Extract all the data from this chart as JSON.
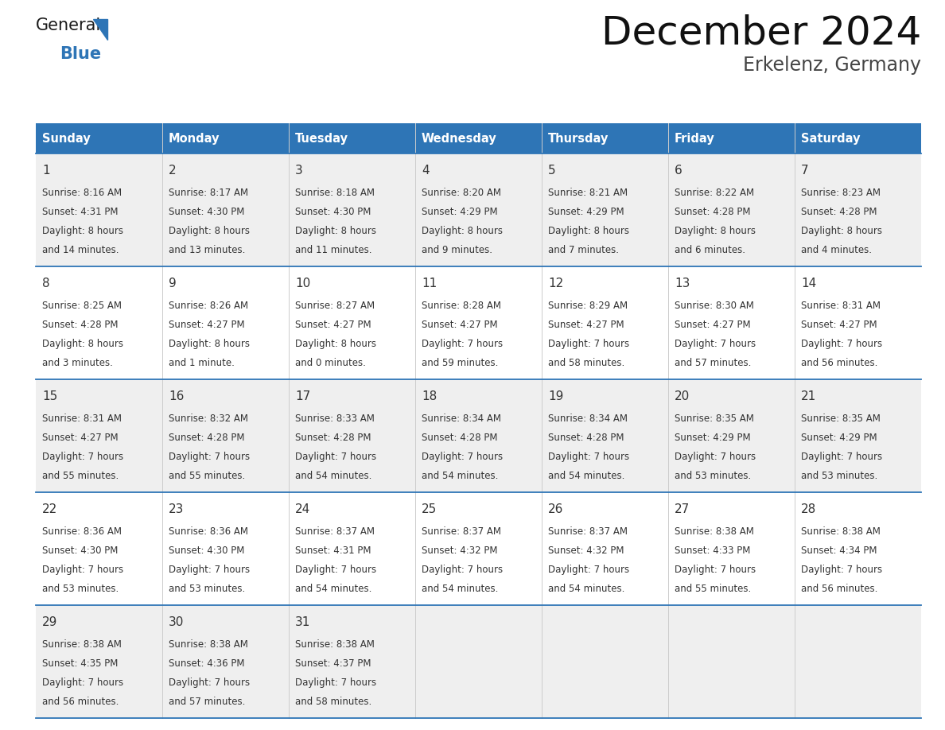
{
  "title": "December 2024",
  "subtitle": "Erkelenz, Germany",
  "header_bg": "#2E75B6",
  "header_text_color": "#FFFFFF",
  "day_headers": [
    "Sunday",
    "Monday",
    "Tuesday",
    "Wednesday",
    "Thursday",
    "Friday",
    "Saturday"
  ],
  "row_bg_even": "#EFEFEF",
  "row_bg_odd": "#FFFFFF",
  "border_color": "#2E75B6",
  "text_color": "#333333",
  "date_color": "#333333",
  "logo_general_color": "#1a1a1a",
  "logo_blue_color": "#2E75B6",
  "calendar_data": [
    [
      {
        "day": 1,
        "sunrise": "8:16 AM",
        "sunset": "4:31 PM",
        "daylight_line1": "Daylight: 8 hours",
        "daylight_line2": "and 14 minutes."
      },
      {
        "day": 2,
        "sunrise": "8:17 AM",
        "sunset": "4:30 PM",
        "daylight_line1": "Daylight: 8 hours",
        "daylight_line2": "and 13 minutes."
      },
      {
        "day": 3,
        "sunrise": "8:18 AM",
        "sunset": "4:30 PM",
        "daylight_line1": "Daylight: 8 hours",
        "daylight_line2": "and 11 minutes."
      },
      {
        "day": 4,
        "sunrise": "8:20 AM",
        "sunset": "4:29 PM",
        "daylight_line1": "Daylight: 8 hours",
        "daylight_line2": "and 9 minutes."
      },
      {
        "day": 5,
        "sunrise": "8:21 AM",
        "sunset": "4:29 PM",
        "daylight_line1": "Daylight: 8 hours",
        "daylight_line2": "and 7 minutes."
      },
      {
        "day": 6,
        "sunrise": "8:22 AM",
        "sunset": "4:28 PM",
        "daylight_line1": "Daylight: 8 hours",
        "daylight_line2": "and 6 minutes."
      },
      {
        "day": 7,
        "sunrise": "8:23 AM",
        "sunset": "4:28 PM",
        "daylight_line1": "Daylight: 8 hours",
        "daylight_line2": "and 4 minutes."
      }
    ],
    [
      {
        "day": 8,
        "sunrise": "8:25 AM",
        "sunset": "4:28 PM",
        "daylight_line1": "Daylight: 8 hours",
        "daylight_line2": "and 3 minutes."
      },
      {
        "day": 9,
        "sunrise": "8:26 AM",
        "sunset": "4:27 PM",
        "daylight_line1": "Daylight: 8 hours",
        "daylight_line2": "and 1 minute."
      },
      {
        "day": 10,
        "sunrise": "8:27 AM",
        "sunset": "4:27 PM",
        "daylight_line1": "Daylight: 8 hours",
        "daylight_line2": "and 0 minutes."
      },
      {
        "day": 11,
        "sunrise": "8:28 AM",
        "sunset": "4:27 PM",
        "daylight_line1": "Daylight: 7 hours",
        "daylight_line2": "and 59 minutes."
      },
      {
        "day": 12,
        "sunrise": "8:29 AM",
        "sunset": "4:27 PM",
        "daylight_line1": "Daylight: 7 hours",
        "daylight_line2": "and 58 minutes."
      },
      {
        "day": 13,
        "sunrise": "8:30 AM",
        "sunset": "4:27 PM",
        "daylight_line1": "Daylight: 7 hours",
        "daylight_line2": "and 57 minutes."
      },
      {
        "day": 14,
        "sunrise": "8:31 AM",
        "sunset": "4:27 PM",
        "daylight_line1": "Daylight: 7 hours",
        "daylight_line2": "and 56 minutes."
      }
    ],
    [
      {
        "day": 15,
        "sunrise": "8:31 AM",
        "sunset": "4:27 PM",
        "daylight_line1": "Daylight: 7 hours",
        "daylight_line2": "and 55 minutes."
      },
      {
        "day": 16,
        "sunrise": "8:32 AM",
        "sunset": "4:28 PM",
        "daylight_line1": "Daylight: 7 hours",
        "daylight_line2": "and 55 minutes."
      },
      {
        "day": 17,
        "sunrise": "8:33 AM",
        "sunset": "4:28 PM",
        "daylight_line1": "Daylight: 7 hours",
        "daylight_line2": "and 54 minutes."
      },
      {
        "day": 18,
        "sunrise": "8:34 AM",
        "sunset": "4:28 PM",
        "daylight_line1": "Daylight: 7 hours",
        "daylight_line2": "and 54 minutes."
      },
      {
        "day": 19,
        "sunrise": "8:34 AM",
        "sunset": "4:28 PM",
        "daylight_line1": "Daylight: 7 hours",
        "daylight_line2": "and 54 minutes."
      },
      {
        "day": 20,
        "sunrise": "8:35 AM",
        "sunset": "4:29 PM",
        "daylight_line1": "Daylight: 7 hours",
        "daylight_line2": "and 53 minutes."
      },
      {
        "day": 21,
        "sunrise": "8:35 AM",
        "sunset": "4:29 PM",
        "daylight_line1": "Daylight: 7 hours",
        "daylight_line2": "and 53 minutes."
      }
    ],
    [
      {
        "day": 22,
        "sunrise": "8:36 AM",
        "sunset": "4:30 PM",
        "daylight_line1": "Daylight: 7 hours",
        "daylight_line2": "and 53 minutes."
      },
      {
        "day": 23,
        "sunrise": "8:36 AM",
        "sunset": "4:30 PM",
        "daylight_line1": "Daylight: 7 hours",
        "daylight_line2": "and 53 minutes."
      },
      {
        "day": 24,
        "sunrise": "8:37 AM",
        "sunset": "4:31 PM",
        "daylight_line1": "Daylight: 7 hours",
        "daylight_line2": "and 54 minutes."
      },
      {
        "day": 25,
        "sunrise": "8:37 AM",
        "sunset": "4:32 PM",
        "daylight_line1": "Daylight: 7 hours",
        "daylight_line2": "and 54 minutes."
      },
      {
        "day": 26,
        "sunrise": "8:37 AM",
        "sunset": "4:32 PM",
        "daylight_line1": "Daylight: 7 hours",
        "daylight_line2": "and 54 minutes."
      },
      {
        "day": 27,
        "sunrise": "8:38 AM",
        "sunset": "4:33 PM",
        "daylight_line1": "Daylight: 7 hours",
        "daylight_line2": "and 55 minutes."
      },
      {
        "day": 28,
        "sunrise": "8:38 AM",
        "sunset": "4:34 PM",
        "daylight_line1": "Daylight: 7 hours",
        "daylight_line2": "and 56 minutes."
      }
    ],
    [
      {
        "day": 29,
        "sunrise": "8:38 AM",
        "sunset": "4:35 PM",
        "daylight_line1": "Daylight: 7 hours",
        "daylight_line2": "and 56 minutes."
      },
      {
        "day": 30,
        "sunrise": "8:38 AM",
        "sunset": "4:36 PM",
        "daylight_line1": "Daylight: 7 hours",
        "daylight_line2": "and 57 minutes."
      },
      {
        "day": 31,
        "sunrise": "8:38 AM",
        "sunset": "4:37 PM",
        "daylight_line1": "Daylight: 7 hours",
        "daylight_line2": "and 58 minutes."
      },
      null,
      null,
      null,
      null
    ]
  ]
}
